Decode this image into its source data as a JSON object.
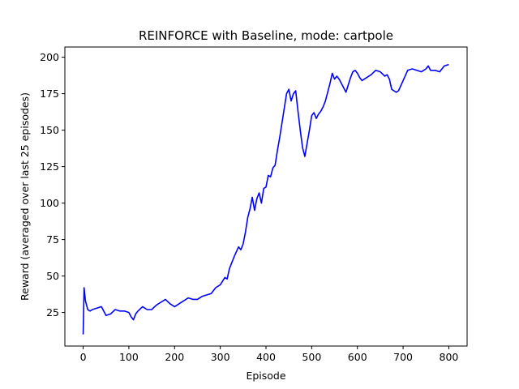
{
  "chart_data": {
    "type": "line",
    "title": "REINFORCE with Baseline, mode: cartpole",
    "xlabel": "Episode",
    "ylabel": "Reward (averaged over last 25 episodes)",
    "xlim": [
      -40,
      840
    ],
    "ylim": [
      2,
      207
    ],
    "xticks": [
      0,
      100,
      200,
      300,
      400,
      500,
      600,
      700,
      800
    ],
    "yticks": [
      25,
      50,
      75,
      100,
      125,
      150,
      175,
      200
    ],
    "grid": false,
    "series": [
      {
        "color": "#0000ff",
        "x": [
          0,
          2,
          5,
          10,
          15,
          20,
          30,
          40,
          50,
          60,
          70,
          80,
          90,
          100,
          105,
          110,
          115,
          120,
          130,
          140,
          150,
          160,
          170,
          180,
          190,
          200,
          210,
          220,
          230,
          240,
          250,
          260,
          270,
          280,
          290,
          300,
          310,
          315,
          320,
          330,
          340,
          345,
          350,
          355,
          360,
          365,
          370,
          375,
          380,
          385,
          390,
          395,
          400,
          405,
          410,
          415,
          420,
          425,
          430,
          435,
          440,
          445,
          450,
          455,
          460,
          465,
          470,
          475,
          480,
          485,
          490,
          495,
          500,
          505,
          510,
          515,
          520,
          525,
          530,
          535,
          540,
          545,
          550,
          555,
          560,
          565,
          570,
          575,
          580,
          585,
          590,
          595,
          600,
          605,
          610,
          620,
          630,
          640,
          650,
          660,
          665,
          670,
          675,
          680,
          685,
          690,
          700,
          710,
          720,
          730,
          740,
          750,
          755,
          760,
          770,
          780,
          790,
          800
        ],
        "y": [
          10,
          42,
          33,
          27,
          26,
          27,
          28,
          29,
          23,
          24,
          27,
          26,
          26,
          25,
          22,
          20,
          24,
          26,
          29,
          27,
          27,
          30,
          32,
          34,
          31,
          29,
          31,
          33,
          35,
          34,
          34,
          36,
          37,
          38,
          42,
          44,
          49,
          48,
          55,
          63,
          70,
          68,
          72,
          80,
          90,
          96,
          104,
          95,
          103,
          107,
          100,
          110,
          111,
          119,
          118,
          124,
          126,
          136,
          145,
          155,
          165,
          175,
          178,
          170,
          175,
          177,
          163,
          150,
          138,
          132,
          141,
          150,
          160,
          162,
          158,
          161,
          163,
          166,
          170,
          176,
          182,
          189,
          185,
          187,
          185,
          182,
          179,
          176,
          181,
          186,
          190,
          191,
          189,
          186,
          184,
          186,
          188,
          191,
          190,
          187,
          188,
          185,
          178,
          177,
          176,
          177,
          184,
          191,
          192,
          191,
          190,
          192,
          194,
          191,
          191,
          190,
          194,
          195
        ]
      }
    ]
  }
}
